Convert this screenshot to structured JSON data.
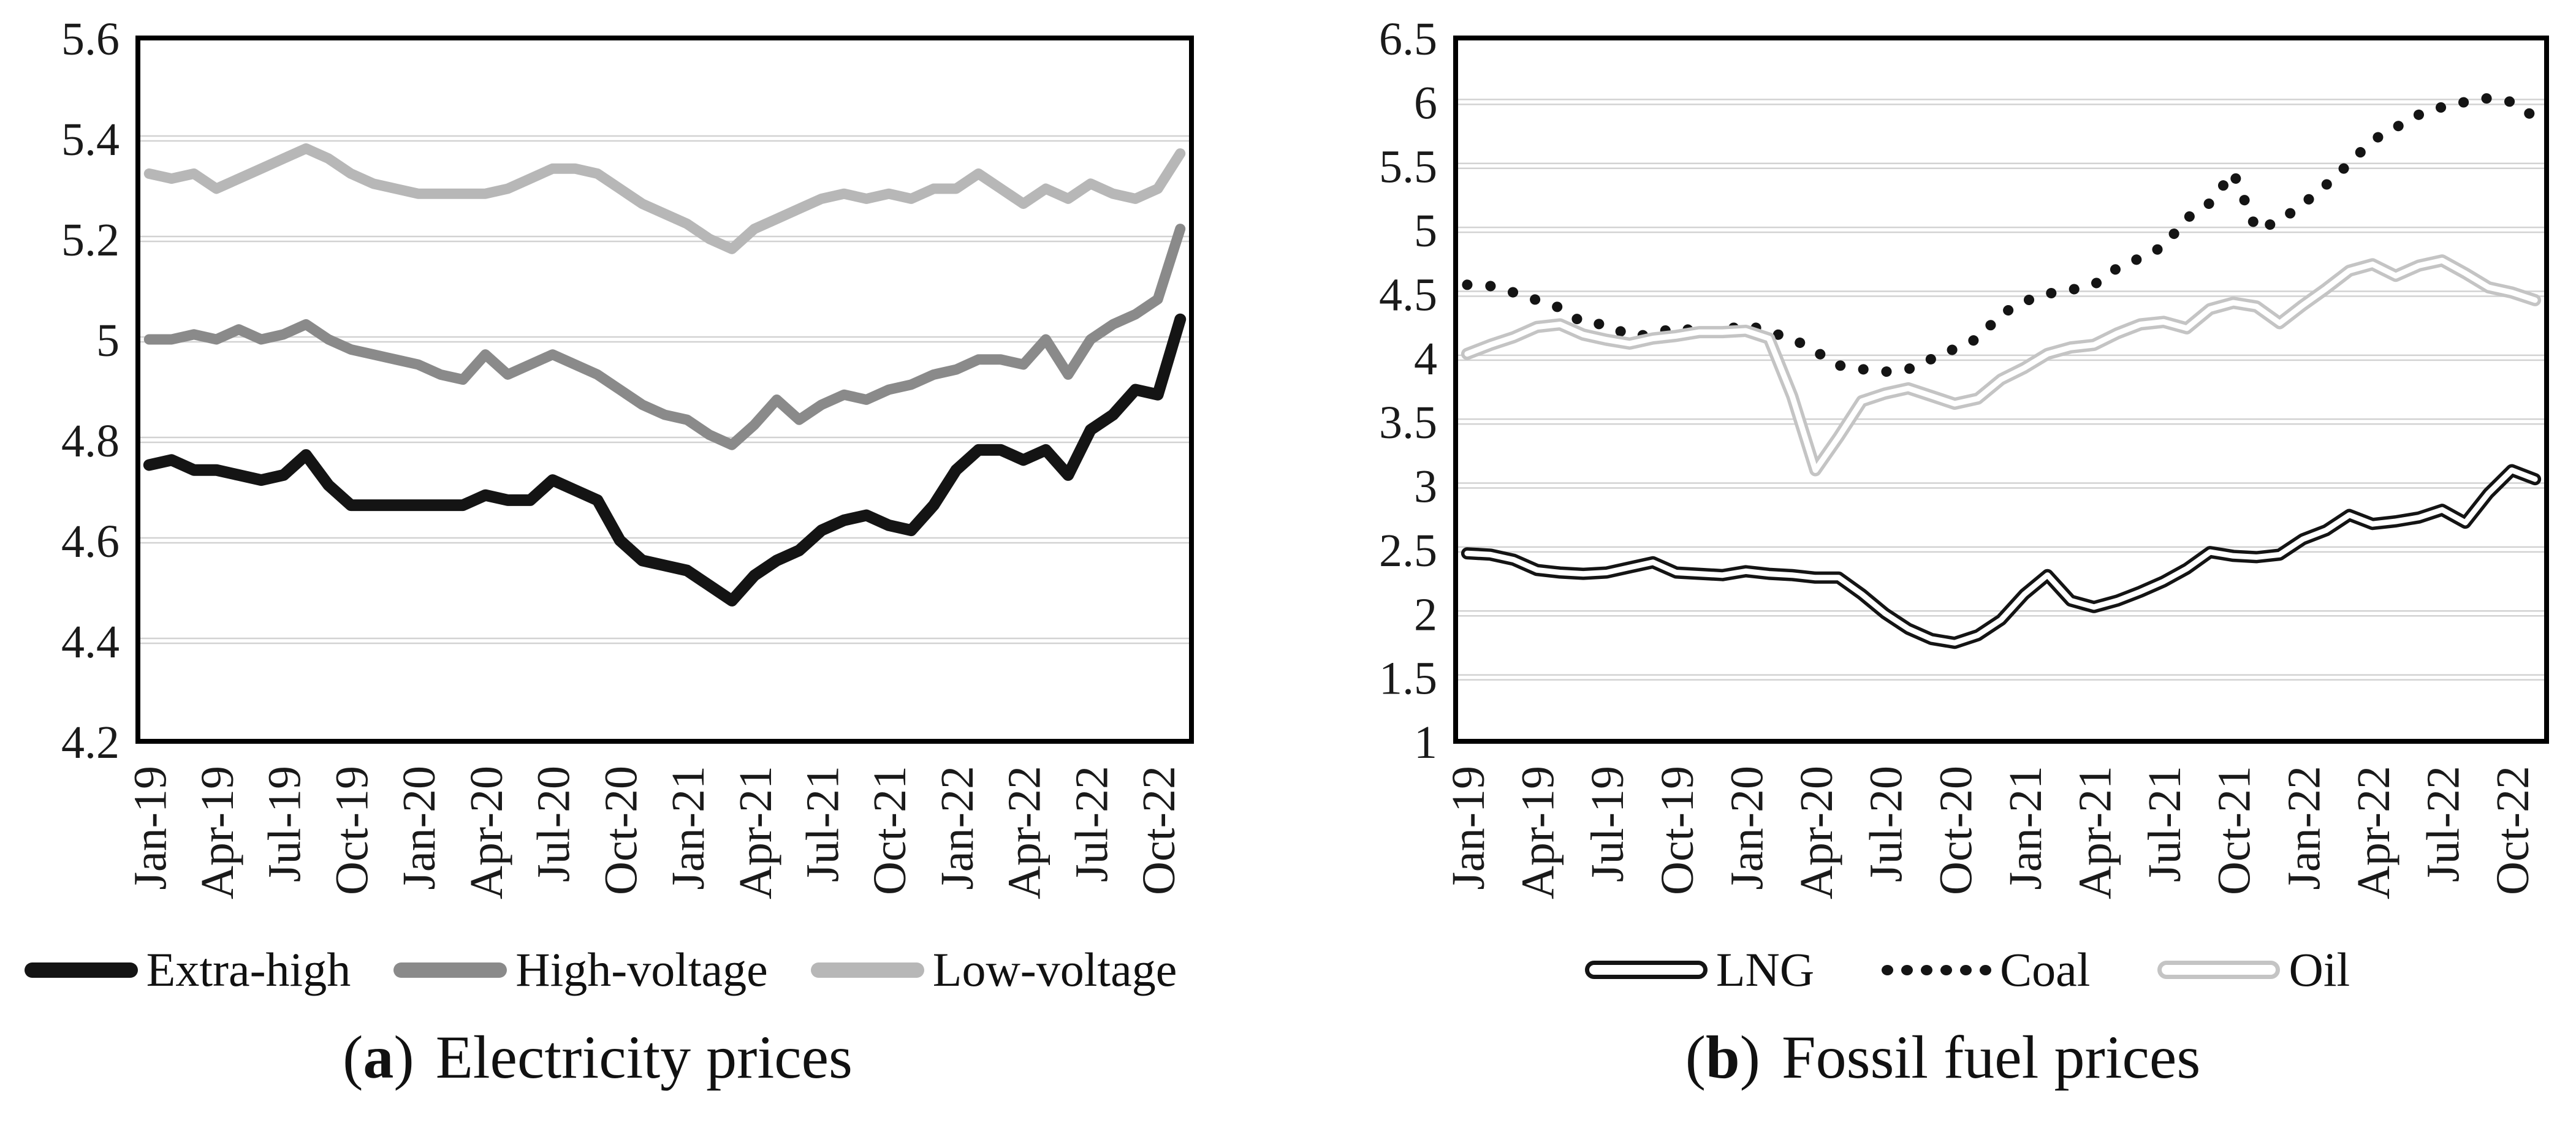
{
  "page": {
    "background": "#ffffff"
  },
  "colors": {
    "grid": "#d2d2d2",
    "plot_border": "#000000",
    "text": "#1a1a1a",
    "extra_high": "#141414",
    "high_voltage": "#8a8a8a",
    "low_voltage": "#b7b7b7",
    "lng": "#141414",
    "coal": "#141414",
    "oil": "#c4c4c4"
  },
  "captions": [
    {
      "open": "(",
      "letter": "a",
      "close": ")",
      "label": "Electricity prices"
    },
    {
      "open": "(",
      "letter": "b",
      "close": ")",
      "label": "Fossil fuel prices"
    }
  ],
  "chart_data": [
    {
      "type": "line",
      "panel": "a",
      "title": "(a) Electricity prices",
      "xlabel": "",
      "ylabel": "",
      "n_points": 47,
      "x_start": "Jan-19",
      "x_end": "Nov-22",
      "x_tick_every": 3,
      "x_tick_labels": [
        "Jan-19",
        "Apr-19",
        "Jul-19",
        "Oct-19",
        "Jan-20",
        "Apr-20",
        "Jul-20",
        "Oct-20",
        "Jan-21",
        "Apr-21",
        "Jul-21",
        "Oct-21",
        "Jan-22",
        "Apr-22",
        "Jul-22",
        "Oct-22"
      ],
      "ylim": [
        4.2,
        5.6
      ],
      "ytick_step": 0.2,
      "y_tick_labels": [
        "5.6",
        "5.4",
        "5.2",
        "5",
        "4.8",
        "4.6",
        "4.4",
        "4.2"
      ],
      "grid": true,
      "legend_position": "bottom",
      "series": [
        {
          "name": "Extra-high",
          "style": "solid",
          "color": "#141414",
          "width": 19,
          "values": [
            4.75,
            4.76,
            4.74,
            4.74,
            4.73,
            4.72,
            4.73,
            4.77,
            4.71,
            4.67,
            4.67,
            4.67,
            4.67,
            4.67,
            4.67,
            4.69,
            4.68,
            4.68,
            4.72,
            4.7,
            4.68,
            4.6,
            4.56,
            4.55,
            4.54,
            4.51,
            4.48,
            4.53,
            4.56,
            4.58,
            4.62,
            4.64,
            4.65,
            4.63,
            4.62,
            4.67,
            4.74,
            4.78,
            4.78,
            4.76,
            4.78,
            4.73,
            4.82,
            4.85,
            4.9,
            4.89,
            5.04
          ]
        },
        {
          "name": "High-voltage",
          "style": "solid",
          "color": "#8a8a8a",
          "width": 17,
          "values": [
            5.0,
            5.0,
            5.01,
            5.0,
            5.02,
            5.0,
            5.01,
            5.03,
            5.0,
            4.98,
            4.97,
            4.96,
            4.95,
            4.93,
            4.92,
            4.97,
            4.93,
            4.95,
            4.97,
            4.95,
            4.93,
            4.9,
            4.87,
            4.85,
            4.84,
            4.81,
            4.79,
            4.83,
            4.88,
            4.84,
            4.87,
            4.89,
            4.88,
            4.9,
            4.91,
            4.93,
            4.94,
            4.96,
            4.96,
            4.95,
            5.0,
            4.93,
            5.0,
            5.03,
            5.05,
            5.08,
            5.22
          ]
        },
        {
          "name": "Low-voltage",
          "style": "solid",
          "color": "#b7b7b7",
          "width": 17,
          "values": [
            5.33,
            5.32,
            5.33,
            5.3,
            5.32,
            5.34,
            5.36,
            5.38,
            5.36,
            5.33,
            5.31,
            5.3,
            5.29,
            5.29,
            5.29,
            5.29,
            5.3,
            5.32,
            5.34,
            5.34,
            5.33,
            5.3,
            5.27,
            5.25,
            5.23,
            5.2,
            5.18,
            5.22,
            5.24,
            5.26,
            5.28,
            5.29,
            5.28,
            5.29,
            5.28,
            5.3,
            5.3,
            5.33,
            5.3,
            5.27,
            5.3,
            5.28,
            5.31,
            5.29,
            5.28,
            5.3,
            5.37
          ]
        }
      ]
    },
    {
      "type": "line",
      "panel": "b",
      "title": "(b) Fossil fuel prices",
      "xlabel": "",
      "ylabel": "",
      "n_points": 47,
      "x_start": "Jan-19",
      "x_end": "Nov-22",
      "x_tick_every": 3,
      "x_tick_labels": [
        "Jan-19",
        "Apr-19",
        "Jul-19",
        "Oct-19",
        "Jan-20",
        "Apr-20",
        "Jul-20",
        "Oct-20",
        "Jan-21",
        "Apr-21",
        "Jul-21",
        "Oct-21",
        "Jan-22",
        "Apr-22",
        "Jul-22",
        "Oct-22"
      ],
      "ylim": [
        1,
        6.5
      ],
      "ytick_step": 0.5,
      "y_tick_labels": [
        "6.5",
        "6",
        "5.5",
        "5",
        "4.5",
        "4",
        "3.5",
        "3",
        "2.5",
        "2",
        "1.5",
        "1"
      ],
      "grid": true,
      "legend_position": "bottom",
      "series": [
        {
          "name": "LNG",
          "style": "outline",
          "color": "#141414",
          "core": "#ffffff",
          "width": 20,
          "core_width": 9,
          "values": [
            2.47,
            2.46,
            2.42,
            2.34,
            2.32,
            2.31,
            2.32,
            2.36,
            2.4,
            2.32,
            2.31,
            2.3,
            2.33,
            2.31,
            2.3,
            2.28,
            2.28,
            2.15,
            2.0,
            1.88,
            1.8,
            1.77,
            1.83,
            1.95,
            2.15,
            2.3,
            2.1,
            2.05,
            2.1,
            2.17,
            2.25,
            2.35,
            2.48,
            2.45,
            2.44,
            2.46,
            2.58,
            2.65,
            2.77,
            2.7,
            2.72,
            2.75,
            2.81,
            2.71,
            2.94,
            3.12,
            3.05
          ]
        },
        {
          "name": "Coal",
          "style": "dots",
          "color": "#141414",
          "width": 17,
          "values": [
            4.57,
            4.56,
            4.51,
            4.45,
            4.39,
            4.27,
            4.26,
            4.17,
            4.18,
            4.24,
            4.2,
            4.21,
            4.26,
            4.2,
            4.15,
            4.05,
            3.94,
            3.91,
            3.89,
            3.91,
            3.99,
            4.07,
            4.15,
            4.34,
            4.44,
            4.5,
            4.53,
            4.57,
            4.7,
            4.78,
            4.87,
            5.09,
            5.21,
            5.45,
            5.0,
            5.07,
            5.2,
            5.35,
            5.52,
            5.7,
            5.8,
            5.9,
            5.96,
            6.0,
            6.03,
            6.0,
            5.88
          ]
        },
        {
          "name": "Oil",
          "style": "outline",
          "color": "#c4c4c4",
          "core": "#ffffff",
          "width": 20,
          "core_width": 9,
          "values": [
            4.03,
            4.1,
            4.16,
            4.24,
            4.26,
            4.18,
            4.14,
            4.11,
            4.15,
            4.17,
            4.2,
            4.2,
            4.21,
            4.15,
            3.7,
            3.12,
            3.38,
            3.66,
            3.72,
            3.76,
            3.7,
            3.64,
            3.68,
            3.83,
            3.92,
            4.03,
            4.08,
            4.1,
            4.19,
            4.26,
            4.28,
            4.23,
            4.38,
            4.43,
            4.4,
            4.27,
            4.41,
            4.54,
            4.68,
            4.73,
            4.64,
            4.72,
            4.76,
            4.66,
            4.55,
            4.51,
            4.45
          ]
        }
      ]
    }
  ]
}
